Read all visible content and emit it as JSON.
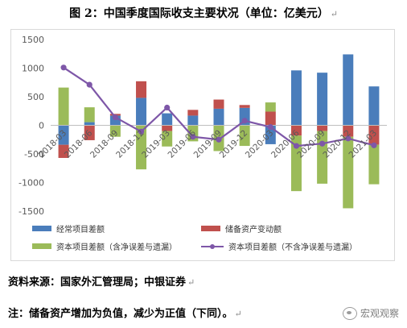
{
  "header": {
    "title": "图 2：中国季度国际收支主要状况（单位：亿美元）",
    "paragraph_mark": "↵"
  },
  "footer": {
    "source": "资料来源：国家外汇管理局；中银证券",
    "source_mark": "↵",
    "note": "注：储备资产增加为负值，减少为正值（下同）。",
    "note_mark": "↵",
    "watermark": "宏观观察"
  },
  "chart_data": {
    "type": "bar",
    "stacked": true,
    "categories": [
      "2018-03",
      "2018-06",
      "2018-09",
      "2018-12",
      "2019-03",
      "2019-06",
      "2019-09",
      "2019-12",
      "2020-03",
      "2020-06",
      "2020-09",
      "2020-12",
      "2021-03"
    ],
    "ylim": [
      -1500,
      1500
    ],
    "yticks": [
      1500,
      1000,
      500,
      0,
      -500,
      -1000,
      -1500
    ],
    "grid": false,
    "legend_position": "bottom",
    "series": [
      {
        "name": "经常项目差额",
        "kind": "bar",
        "color": "#4a7dbb",
        "values": [
          -340,
          55,
          170,
          480,
          210,
          170,
          290,
          305,
          -330,
          960,
          920,
          1240,
          680
        ]
      },
      {
        "name": "储备资产变动额",
        "kind": "bar",
        "color": "#c0504d",
        "values": [
          -230,
          -260,
          30,
          290,
          -100,
          100,
          160,
          50,
          240,
          -180,
          -100,
          -200,
          -340
        ]
      },
      {
        "name": "资本项目差额（含净误差与遗漏）",
        "kind": "bar",
        "color": "#9bbb59",
        "values": [
          660,
          260,
          -200,
          -770,
          -270,
          -280,
          -450,
          -360,
          160,
          -970,
          -920,
          -1250,
          -690
        ]
      },
      {
        "name": "资本项目差额（不含净误差与遗漏）",
        "kind": "line",
        "color": "#7e57a8",
        "values": [
          1010,
          710,
          140,
          -110,
          310,
          -200,
          -250,
          80,
          -30,
          -360,
          -320,
          -230,
          -350
        ]
      }
    ],
    "colors": {
      "axis": "#bfbfbf",
      "tick_text": "#595959"
    }
  }
}
